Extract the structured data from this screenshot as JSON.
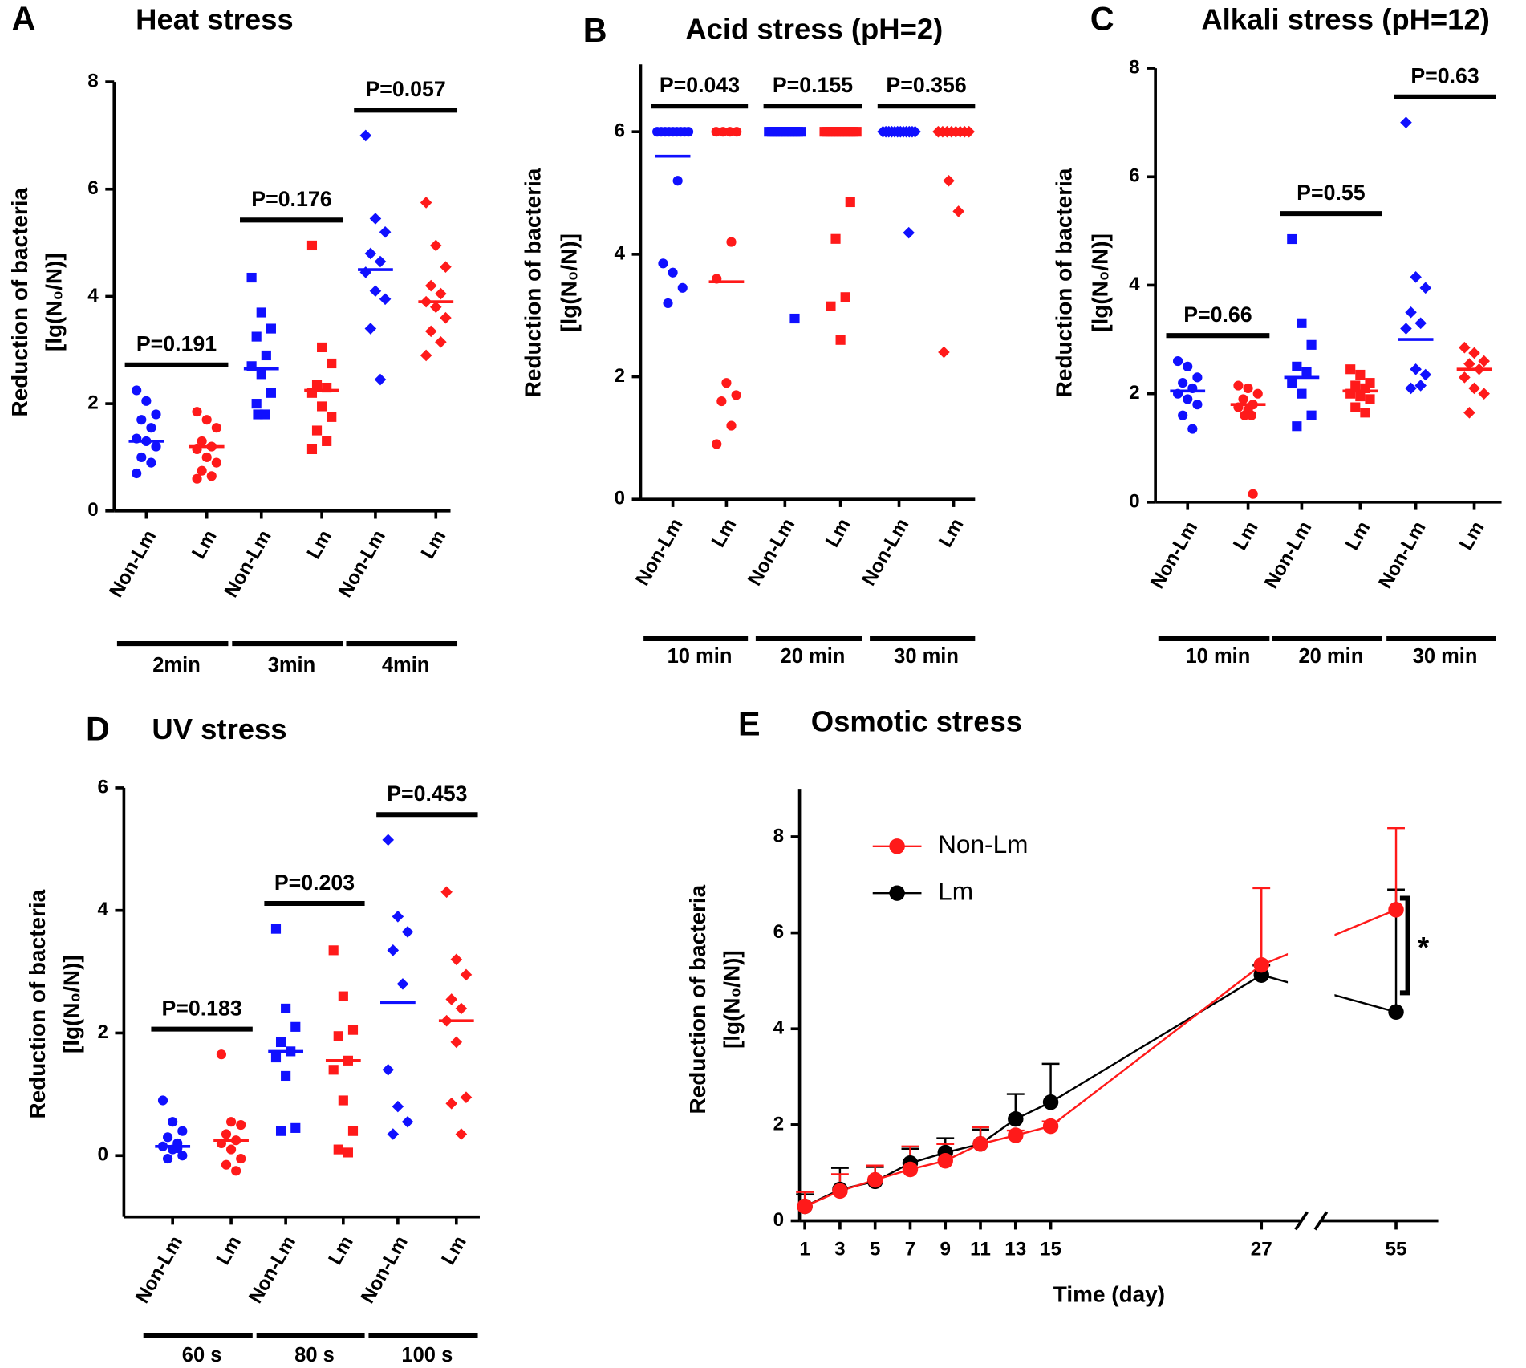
{
  "chart_data": [
    {
      "type": "dot",
      "panel": "A",
      "title": "Heat stress",
      "ylabel": [
        "Reduction of bacteria",
        "[lg(N₀/N)]"
      ],
      "categories": [
        "Non-Lm",
        "Lm",
        "Non-Lm",
        "Lm",
        "Non-Lm",
        "Lm"
      ],
      "colors": [
        "#1010ff",
        "#ff1a1a",
        "#1010ff",
        "#ff1a1a",
        "#1010ff",
        "#ff1a1a"
      ],
      "values": [
        [
          2.25,
          2.05,
          1.8,
          1.7,
          1.55,
          1.35,
          1.3,
          1.2,
          1.0,
          0.9,
          0.7
        ],
        [
          1.85,
          1.7,
          1.55,
          1.3,
          1.2,
          1.15,
          1.0,
          0.9,
          0.75,
          0.65,
          0.6
        ],
        [
          4.35,
          3.7,
          3.4,
          3.25,
          2.9,
          2.7,
          2.55,
          2.2,
          2.0,
          1.8,
          1.8
        ],
        [
          4.95,
          3.05,
          2.75,
          2.35,
          2.3,
          2.2,
          1.95,
          1.75,
          1.5,
          1.3,
          1.15
        ],
        [
          7.0,
          5.45,
          5.2,
          4.8,
          4.65,
          4.45,
          4.1,
          3.95,
          3.4,
          2.45
        ],
        [
          5.75,
          4.95,
          4.55,
          4.2,
          4.05,
          3.9,
          3.8,
          3.6,
          3.35,
          3.15,
          2.9
        ]
      ],
      "means": [
        1.3,
        1.2,
        2.65,
        2.25,
        4.5,
        3.9
      ],
      "groups": [
        "2min",
        "3min",
        "4min"
      ],
      "annotations": [
        "P=0.191",
        "P=0.176",
        "P=0.057"
      ],
      "ylim": [
        0,
        8
      ],
      "yticks": [
        0,
        2,
        4,
        6,
        8
      ]
    },
    {
      "type": "dot",
      "panel": "B",
      "title": "Acid stress (pH=2)",
      "ylabel": [
        "Reduction of bacteria",
        "[lg(N₀/N)]"
      ],
      "categories": [
        "Non-Lm",
        "Lm",
        "Non-Lm",
        "Lm",
        "Non-Lm",
        "Lm"
      ],
      "colors": [
        "#1010ff",
        "#ff1a1a",
        "#1010ff",
        "#ff1a1a",
        "#1010ff",
        "#ff1a1a"
      ],
      "values": [
        [
          6,
          6,
          6,
          6,
          6,
          6,
          6,
          6,
          6,
          5.2,
          3.85,
          3.7,
          3.45,
          3.2
        ],
        [
          6,
          6,
          6,
          6,
          4.2,
          3.6,
          1.9,
          1.7,
          1.6,
          1.2,
          0.9
        ],
        [
          6,
          6,
          6,
          6,
          6,
          6,
          6,
          6,
          6,
          6,
          6,
          6,
          2.95
        ],
        [
          6,
          6,
          6,
          6,
          6,
          6,
          6,
          6,
          6,
          6,
          6,
          6,
          4.85,
          4.25,
          3.3,
          3.15,
          2.6
        ],
        [
          6,
          6,
          6,
          6,
          6,
          6,
          6,
          6,
          6,
          6,
          6,
          6,
          4.35
        ],
        [
          6,
          6,
          6,
          6,
          6,
          6,
          6,
          6,
          5.2,
          4.7,
          2.4
        ]
      ],
      "means": [
        5.6,
        3.55,
        6,
        6,
        6,
        6
      ],
      "groups": [
        "10 min",
        "20 min",
        "30 min"
      ],
      "annotations": [
        "P=0.043",
        "P=0.155",
        "P=0.356"
      ],
      "ylim": [
        0,
        7.1
      ],
      "yticks": [
        0,
        2,
        4,
        6
      ]
    },
    {
      "type": "dot",
      "panel": "C",
      "title": "Alkali stress (pH=12)",
      "ylabel": [
        "Reduction of bacteria",
        "[lg(N₀/N)]"
      ],
      "categories": [
        "Non-Lm",
        "Lm",
        "Non-Lm",
        "Lm",
        "Non-Lm",
        "Lm"
      ],
      "colors": [
        "#1010ff",
        "#ff1a1a",
        "#1010ff",
        "#ff1a1a",
        "#1010ff",
        "#ff1a1a"
      ],
      "values": [
        [
          2.6,
          2.5,
          2.3,
          2.2,
          2.1,
          2.0,
          1.9,
          1.8,
          1.6,
          1.35
        ],
        [
          2.15,
          2.1,
          2.0,
          1.9,
          1.8,
          1.75,
          1.7,
          1.6,
          1.6,
          0.15
        ],
        [
          4.85,
          3.3,
          2.9,
          2.5,
          2.4,
          2.2,
          2.0,
          1.6,
          1.4
        ],
        [
          2.45,
          2.35,
          2.2,
          2.15,
          2.1,
          2.0,
          1.95,
          1.9,
          1.75,
          1.65
        ],
        [
          7.0,
          4.15,
          3.95,
          3.5,
          3.3,
          3.2,
          2.45,
          2.35,
          2.1,
          2.15
        ],
        [
          2.85,
          2.75,
          2.6,
          2.55,
          2.45,
          2.3,
          2.1,
          2.0,
          1.65
        ]
      ],
      "means": [
        2.05,
        1.8,
        2.3,
        2.05,
        3.0,
        2.45
      ],
      "groups": [
        "10 min",
        "20 min",
        "30 min"
      ],
      "annotations": [
        "P=0.66",
        "P=0.55",
        "P=0.63"
      ],
      "ylim": [
        0,
        8
      ],
      "yticks": [
        0,
        2,
        4,
        6,
        8
      ]
    },
    {
      "type": "dot",
      "panel": "D",
      "title": "UV stress",
      "ylabel": [
        "Reduction of bacteria",
        "[lg(N₀/N)]"
      ],
      "categories": [
        "Non-Lm",
        "Lm",
        "Non-Lm",
        "Lm",
        "Non-Lm",
        "Lm"
      ],
      "colors": [
        "#1010ff",
        "#ff1a1a",
        "#1010ff",
        "#ff1a1a",
        "#1010ff",
        "#ff1a1a"
      ],
      "values": [
        [
          0.9,
          0.55,
          0.4,
          0.3,
          0.2,
          0.15,
          0.1,
          0.0,
          -0.05,
          0.12
        ],
        [
          1.65,
          0.55,
          0.5,
          0.35,
          0.25,
          0.2,
          0.1,
          -0.05,
          -0.15,
          -0.25
        ],
        [
          3.7,
          2.4,
          2.1,
          1.85,
          1.7,
          1.6,
          1.3,
          0.45,
          0.4
        ],
        [
          3.35,
          2.6,
          2.05,
          1.95,
          1.55,
          1.4,
          0.9,
          0.4,
          0.1,
          0.05
        ],
        [
          5.15,
          3.9,
          3.65,
          3.35,
          2.8,
          1.4,
          0.8,
          0.55,
          0.35
        ],
        [
          4.3,
          3.2,
          2.95,
          2.55,
          2.4,
          2.2,
          1.85,
          0.95,
          0.85,
          0.35
        ]
      ],
      "means": [
        0.15,
        0.25,
        1.7,
        1.55,
        2.5,
        2.2
      ],
      "groups": [
        "60 s",
        "80 s",
        "100 s"
      ],
      "annotations": [
        "P=0.183",
        "P=0.203",
        "P=0.453"
      ],
      "ylim": [
        -1,
        6
      ],
      "yticks": [
        0,
        2,
        4,
        6
      ]
    },
    {
      "type": "line",
      "panel": "E",
      "title": "Osmotic stress",
      "ylabel": [
        "Reduction of bacteria",
        "[lg(N₀/N)]"
      ],
      "xlabel": "Time (day)",
      "x": [
        1,
        3,
        5,
        7,
        9,
        11,
        13,
        15,
        27,
        55
      ],
      "series": [
        {
          "name": "Lm",
          "color": "#000000",
          "values": [
            0.3,
            0.65,
            0.82,
            1.2,
            1.42,
            1.6,
            2.12,
            2.47,
            5.12,
            4.35
          ],
          "errors": [
            0.25,
            0.45,
            0.3,
            0.3,
            0.3,
            0.3,
            0.52,
            0.8,
            0.2,
            2.55
          ]
        },
        {
          "name": "Non-Lm",
          "color": "#ff1a1a",
          "values": [
            0.3,
            0.62,
            0.85,
            1.07,
            1.25,
            1.6,
            1.78,
            1.97,
            5.33,
            6.48
          ],
          "errors": [
            0.3,
            0.35,
            0.3,
            0.48,
            0.35,
            0.35,
            0.1,
            0.1,
            1.6,
            1.7
          ]
        }
      ],
      "annotations": [
        "*"
      ],
      "xlim": [
        0.7,
        57.4
      ],
      "xbreak": [
        29.5,
        50.5
      ],
      "xticks": [
        1,
        3,
        5,
        7,
        9,
        11,
        13,
        15,
        27,
        55
      ],
      "ylim": [
        0,
        9
      ],
      "yticks": [
        0,
        2,
        4,
        6,
        8
      ]
    }
  ]
}
